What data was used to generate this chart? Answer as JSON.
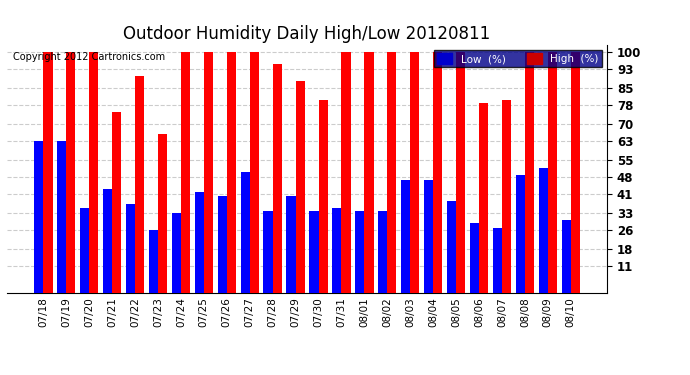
{
  "title": "Outdoor Humidity Daily High/Low 20120811",
  "copyright": "Copyright 2012 Cartronics.com",
  "background_color": "#ffffff",
  "bar_width": 0.4,
  "categories": [
    "07/18",
    "07/19",
    "07/20",
    "07/21",
    "07/22",
    "07/23",
    "07/24",
    "07/25",
    "07/26",
    "07/27",
    "07/28",
    "07/29",
    "07/30",
    "07/31",
    "08/01",
    "08/02",
    "08/03",
    "08/04",
    "08/05",
    "08/06",
    "08/07",
    "08/08",
    "08/09",
    "08/10"
  ],
  "high_values": [
    100,
    100,
    100,
    75,
    90,
    66,
    100,
    100,
    100,
    100,
    95,
    88,
    80,
    100,
    100,
    100,
    100,
    100,
    100,
    79,
    80,
    100,
    100,
    100
  ],
  "low_values": [
    63,
    63,
    35,
    43,
    37,
    26,
    33,
    42,
    40,
    50,
    34,
    40,
    34,
    35,
    34,
    34,
    47,
    47,
    38,
    29,
    27,
    49,
    52,
    30
  ],
  "high_color": "#ff0000",
  "low_color": "#0000ff",
  "yticks": [
    11,
    18,
    26,
    33,
    41,
    48,
    55,
    63,
    70,
    78,
    85,
    93,
    100
  ],
  "grid_color": "#cccccc",
  "title_fontsize": 12,
  "legend_low_color": "#0000cc",
  "legend_high_color": "#cc0000",
  "legend_bg": "#000088"
}
